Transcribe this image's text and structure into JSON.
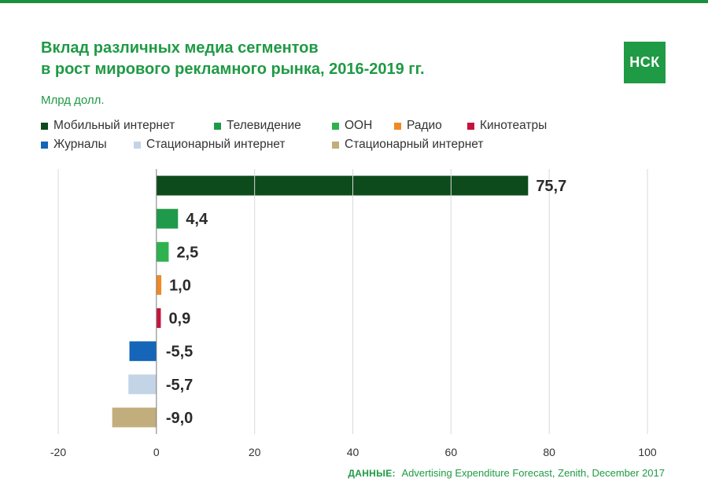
{
  "title_lines": [
    "Вклад различных медиа сегментов",
    "в рост мирового рекламного рынка, 2016-2019 гг."
  ],
  "logo_text": "НСК",
  "unit_label": "Млрд долл.",
  "source": {
    "label": "ДАННЫЕ:",
    "text": "Advertising Expenditure Forecast, Zenith, December 2017"
  },
  "chart_data": {
    "type": "bar",
    "orientation": "horizontal",
    "title": "Вклад различных медиа сегментов в рост мирового рекламного рынка, 2016-2019 гг.",
    "ylabel": "Млрд долл.",
    "xlim": [
      -20,
      100
    ],
    "xticks": [
      -20,
      0,
      20,
      40,
      60,
      80,
      100
    ],
    "tick_labels": [
      "-20",
      "0",
      "20",
      "40",
      "60",
      "80",
      "100"
    ],
    "grid": true,
    "legend_position": "top",
    "categories": [
      "Мобильный интернет",
      "Телевидение",
      "ООН",
      "Радио",
      "Кинотеатры",
      "Журналы",
      "Стационарный интернет",
      "Стационарный интернет"
    ],
    "values": [
      75.7,
      4.4,
      2.5,
      1.0,
      0.9,
      -5.5,
      -5.7,
      -9.0
    ],
    "value_labels": [
      "75,7",
      "4,4",
      "2,5",
      "1,0",
      "0,9",
      "-5,5",
      "-5,7",
      "-9,0"
    ],
    "colors": [
      "#0d4a1c",
      "#1e9a4a",
      "#2eb24f",
      "#f08a24",
      "#c4143c",
      "#1565b8",
      "#c3d4e6",
      "#c2ad7c"
    ]
  }
}
